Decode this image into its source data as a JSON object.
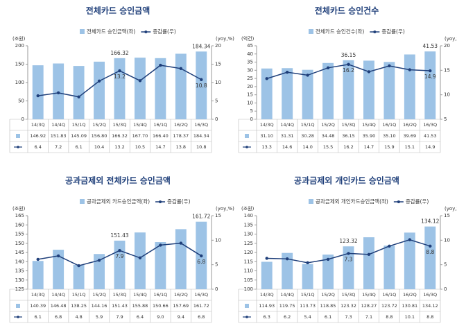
{
  "chart_data": [
    {
      "type": "combo",
      "title": "전체카드 승인금액",
      "ylabel": "(조원)",
      "y2label": "(yoy,%)",
      "categories": [
        "14/3Q",
        "14/4Q",
        "15/1Q",
        "15/2Q",
        "15/3Q",
        "15/4Q",
        "16/1Q",
        "16/2Q",
        "16/3Q"
      ],
      "series": [
        {
          "name": "전체카드 승인금액(좌)",
          "type": "bar",
          "color": "#9dc3e6",
          "values": [
            146.92,
            151.83,
            145.09,
            156.8,
            166.32,
            167.7,
            166.4,
            178.37,
            184.34
          ],
          "value_labels": [
            "146.92",
            "151.83",
            "145.09",
            "156.80",
            "166.32",
            "167.70",
            "166.40",
            "178.37",
            "184.34"
          ]
        },
        {
          "name": "증감률(우)",
          "type": "line",
          "axis": "y2",
          "color": "#1f3f7a",
          "values": [
            6.4,
            7.2,
            6.1,
            10.4,
            13.2,
            10.5,
            14.7,
            13.8,
            10.8
          ],
          "value_labels": [
            "6.4",
            "7.2",
            "6.1",
            "10.4",
            "13.2",
            "10.5",
            "14.7",
            "13.8",
            "10.8"
          ]
        }
      ],
      "data_labels_at": [
        4,
        8
      ],
      "ylim": [
        0,
        200
      ],
      "yticks": [
        0,
        50,
        100,
        150,
        200
      ],
      "y2lim": [
        0,
        20
      ],
      "y2ticks": [
        0,
        5,
        10,
        15,
        20
      ],
      "grid": false
    },
    {
      "type": "combo",
      "title": "전체카드 승인건수",
      "ylabel": "(억건)",
      "y2label": "(yoy,%)",
      "categories": [
        "14/3Q",
        "14/4Q",
        "15/1Q",
        "15/2Q",
        "15/3Q",
        "15/4Q",
        "16/1Q",
        "16/2Q",
        "16/3Q"
      ],
      "series": [
        {
          "name": "전체카드 승인건수(좌)",
          "type": "bar",
          "color": "#9dc3e6",
          "values": [
            31.1,
            31.31,
            30.28,
            34.48,
            36.15,
            35.9,
            35.1,
            39.69,
            41.53
          ],
          "value_labels": [
            "31.10",
            "31.31",
            "30.28",
            "34.48",
            "36.15",
            "35.90",
            "35.10",
            "39.69",
            "41.53"
          ]
        },
        {
          "name": "증감률(우)",
          "type": "line",
          "axis": "y2",
          "color": "#1f3f7a",
          "values": [
            13.3,
            14.6,
            14.0,
            15.5,
            16.2,
            14.7,
            15.9,
            15.1,
            14.9
          ],
          "value_labels": [
            "13.3",
            "14.6",
            "14.0",
            "15.5",
            "16.2",
            "14.7",
            "15.9",
            "15.1",
            "14.9"
          ]
        }
      ],
      "data_labels_at": [
        4,
        8
      ],
      "ylim": [
        0,
        45
      ],
      "yticks": [
        0,
        5,
        10,
        15,
        20,
        25,
        30,
        35,
        40,
        45
      ],
      "y2lim": [
        5,
        20
      ],
      "y2ticks": [
        5,
        10,
        15,
        20
      ],
      "grid": false
    },
    {
      "type": "combo",
      "title": "공과금제외 전체카드 승인금액",
      "ylabel": "(조원)",
      "y2label": "(yoy,%)",
      "categories": [
        "14/3Q",
        "14/4Q",
        "15/1Q",
        "15/2Q",
        "15/3Q",
        "15/4Q",
        "16/1Q",
        "16/2Q",
        "16/3Q"
      ],
      "series": [
        {
          "name": "공과금제외 카드승인금액(좌)",
          "type": "bar",
          "color": "#9dc3e6",
          "values": [
            140.39,
            146.48,
            138.25,
            144.16,
            151.43,
            155.88,
            150.66,
            157.69,
            161.72
          ],
          "value_labels": [
            "140.39",
            "146.48",
            "138.25",
            "144.16",
            "151.43",
            "155.88",
            "150.66",
            "157.69",
            "161.72"
          ]
        },
        {
          "name": "증감률(우)",
          "type": "line",
          "axis": "y2",
          "color": "#1f3f7a",
          "values": [
            6.1,
            6.8,
            4.8,
            5.9,
            7.9,
            6.4,
            9.0,
            9.4,
            6.8
          ],
          "value_labels": [
            "6.1",
            "6.8",
            "4.8",
            "5.9",
            "7.9",
            "6.4",
            "9.0",
            "9.4",
            "6.8"
          ]
        }
      ],
      "data_labels_at": [
        4,
        8
      ],
      "ylim": [
        125,
        165
      ],
      "yticks": [
        125,
        130,
        135,
        140,
        145,
        150,
        155,
        160,
        165
      ],
      "y2lim": [
        0,
        15
      ],
      "y2ticks": [
        0,
        5,
        10,
        15
      ],
      "grid": false
    },
    {
      "type": "combo",
      "title": "공과금제외 개인카드 승인금액",
      "ylabel": "(조원)",
      "y2label": "(yoy,%)",
      "categories": [
        "14/3Q",
        "14/4Q",
        "15/1Q",
        "15/2Q",
        "15/3Q",
        "15/4Q",
        "16/1Q",
        "16/2Q",
        "16/3Q"
      ],
      "series": [
        {
          "name": "공과금제외 개인카드승인금액(좌)",
          "type": "bar",
          "color": "#9dc3e6",
          "values": [
            114.93,
            119.75,
            113.73,
            118.85,
            123.32,
            128.27,
            123.72,
            130.81,
            134.12
          ],
          "value_labels": [
            "114.93",
            "119.75",
            "113.73",
            "118.85",
            "123.32",
            "128.27",
            "123.72",
            "130.81",
            "134.12"
          ]
        },
        {
          "name": "증감률(우)",
          "type": "line",
          "axis": "y2",
          "color": "#1f3f7a",
          "values": [
            6.3,
            6.2,
            5.4,
            6.1,
            7.3,
            7.1,
            8.8,
            10.1,
            8.8
          ],
          "value_labels": [
            "6.3",
            "6.2",
            "5.4",
            "6.1",
            "7.3",
            "7.1",
            "8.8",
            "10.1",
            "8.8"
          ]
        }
      ],
      "data_labels_at": [
        4,
        8
      ],
      "ylim": [
        100,
        140
      ],
      "yticks": [
        100,
        105,
        110,
        115,
        120,
        125,
        130,
        135,
        140
      ],
      "y2lim": [
        0,
        15
      ],
      "y2ticks": [
        0,
        5,
        10,
        15
      ],
      "grid": false
    }
  ]
}
